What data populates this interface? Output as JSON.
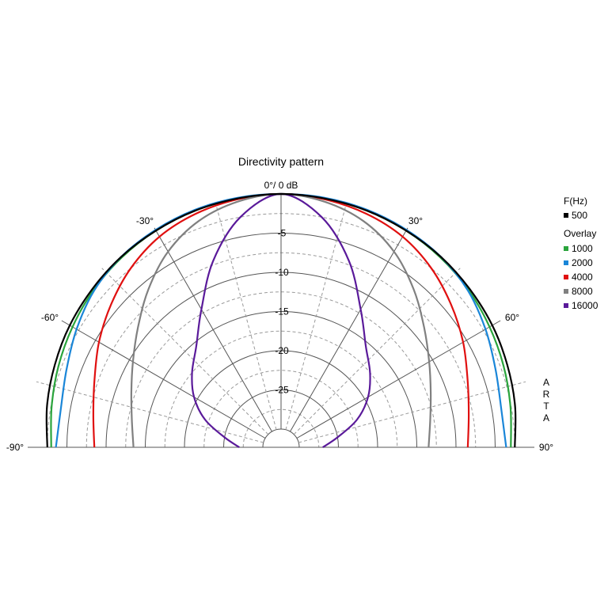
{
  "chart_data": {
    "type": "polar",
    "title": "Directivity pattern",
    "top_label": "0°/ 0 dB",
    "brand": "ARTA",
    "radial_unit": "dB",
    "rlim": [
      -30,
      0
    ],
    "radial_ticks": [
      -5,
      -10,
      -15,
      -20,
      -25
    ],
    "angle_range": [
      -90,
      90
    ],
    "angle_labels": [
      {
        "angle": -90,
        "text": "-90°"
      },
      {
        "angle": -60,
        "text": "-60°"
      },
      {
        "angle": -30,
        "text": "-30°"
      },
      {
        "angle": 30,
        "text": "30°"
      },
      {
        "angle": 60,
        "text": "60°"
      },
      {
        "angle": 90,
        "text": "90°"
      }
    ],
    "grid": true,
    "legend": {
      "placement": "right",
      "header": "F(Hz)",
      "overlay_header": "Overlay"
    },
    "angles": [
      -90,
      -80,
      -70,
      -60,
      -50,
      -40,
      -30,
      -20,
      -10,
      0,
      10,
      20,
      30,
      40,
      50,
      60,
      70,
      80,
      90
    ],
    "series": [
      {
        "name": "500",
        "color": "#000000",
        "group": "main",
        "values": [
          -2.5,
          -2.0,
          -1.6,
          -1.2,
          -0.9,
          -0.6,
          -0.4,
          -0.2,
          -0.1,
          0,
          -0.1,
          -0.2,
          -0.4,
          -0.6,
          -0.9,
          -1.2,
          -1.6,
          -2.0,
          -2.5
        ]
      },
      {
        "name": "1000",
        "color": "#2aa43c",
        "group": "overlay",
        "values": [
          -3.0,
          -2.6,
          -2.1,
          -1.6,
          -1.1,
          -0.7,
          -0.4,
          -0.2,
          -0.1,
          0,
          -0.1,
          -0.2,
          -0.4,
          -0.7,
          -1.1,
          -1.6,
          -2.1,
          -2.6,
          -3.0
        ]
      },
      {
        "name": "2000",
        "color": "#1a86d8",
        "group": "overlay",
        "values": [
          -3.6,
          -3.8,
          -3.2,
          -2.2,
          -1.2,
          -0.6,
          -0.3,
          -0.1,
          0,
          0,
          0,
          -0.1,
          -0.3,
          -0.6,
          -1.2,
          -2.2,
          -3.2,
          -3.8,
          -3.6
        ]
      },
      {
        "name": "4000",
        "color": "#e01010",
        "group": "overlay",
        "values": [
          -8.5,
          -8.0,
          -7.0,
          -5.5,
          -4.0,
          -2.5,
          -1.3,
          -0.6,
          -0.2,
          0,
          -0.2,
          -0.6,
          -1.3,
          -2.5,
          -4.0,
          -5.5,
          -7.0,
          -8.0,
          -8.5
        ]
      },
      {
        "name": "8000",
        "color": "#808080",
        "group": "overlay",
        "values": [
          -13.5,
          -13.0,
          -12.0,
          -10.5,
          -8.5,
          -6.0,
          -3.5,
          -1.6,
          -0.5,
          0,
          -0.5,
          -1.6,
          -3.5,
          -6.0,
          -8.5,
          -10.5,
          -12.0,
          -13.0,
          -13.5
        ]
      },
      {
        "name": "16000",
        "color": "#5a1a9a",
        "group": "overlay",
        "values": [
          -27.0,
          -25.0,
          -22.0,
          -19.5,
          -17.5,
          -15.5,
          -12.0,
          -7.0,
          -2.5,
          0,
          -2.5,
          -7.0,
          -12.0,
          -15.5,
          -17.5,
          -19.5,
          -22.0,
          -25.0,
          -27.0
        ]
      }
    ]
  }
}
